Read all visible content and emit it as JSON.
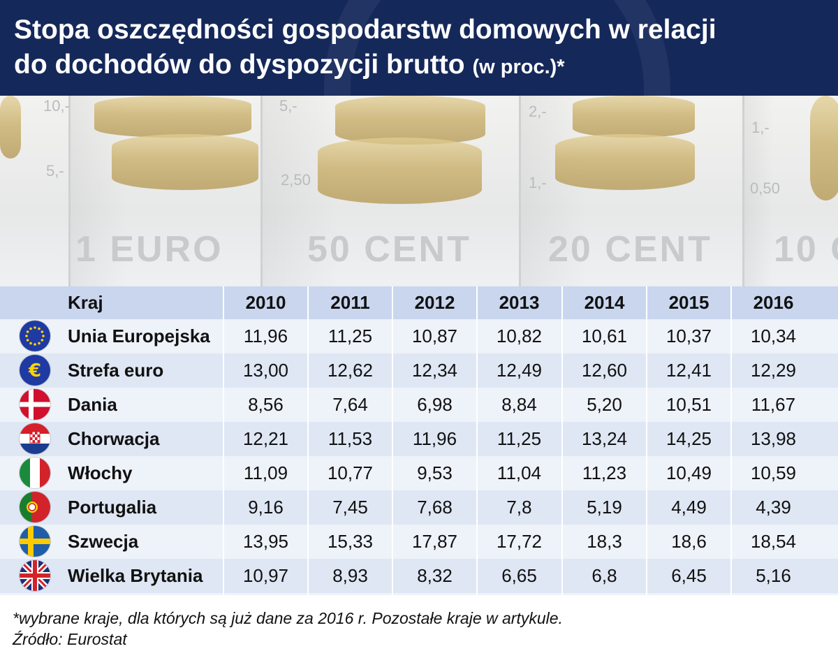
{
  "header": {
    "title_line1": "Stopa oszczędności gospodarstw domowych w relacji",
    "title_line2": "do dochodów do dyspozycji brutto",
    "title_suffix": "(w proc.)*"
  },
  "photo": {
    "denominations": [
      "1 EURO",
      "50 CENT",
      "20 CENT",
      "10 C"
    ],
    "scale_marks": [
      "10,-",
      "5,-",
      "5,-",
      "2,50",
      "2,-",
      "1,-",
      "1,-",
      "0,50"
    ]
  },
  "chart_data": {
    "type": "table",
    "title": "Stopa oszczędności gospodarstw domowych w relacji do dochodów do dyspozycji brutto (w proc.)*",
    "column_header": "Kraj",
    "columns": [
      "2010",
      "2011",
      "2012",
      "2013",
      "2014",
      "2015",
      "2016"
    ],
    "rows": [
      {
        "country": "Unia Europejska",
        "flag": "eu-flag-icon",
        "values": [
          "11,96",
          "11,25",
          "10,87",
          "10,82",
          "10,61",
          "10,37",
          "10,34"
        ]
      },
      {
        "country": "Strefa euro",
        "flag": "euro-sign-icon",
        "values": [
          "13,00",
          "12,62",
          "12,34",
          "12,49",
          "12,60",
          "12,41",
          "12,29"
        ]
      },
      {
        "country": "Dania",
        "flag": "denmark-flag-icon",
        "values": [
          "8,56",
          "7,64",
          "6,98",
          "8,84",
          "5,20",
          "10,51",
          "11,67"
        ]
      },
      {
        "country": "Chorwacja",
        "flag": "croatia-flag-icon",
        "values": [
          "12,21",
          "11,53",
          "11,96",
          "11,25",
          "13,24",
          "14,25",
          "13,98"
        ]
      },
      {
        "country": "Włochy",
        "flag": "italy-flag-icon",
        "values": [
          "11,09",
          "10,77",
          "9,53",
          "11,04",
          "11,23",
          "10,49",
          "10,59"
        ]
      },
      {
        "country": "Portugalia",
        "flag": "portugal-flag-icon",
        "values": [
          "9,16",
          "7,45",
          "7,68",
          "7,8",
          "5,19",
          "4,49",
          "4,39"
        ]
      },
      {
        "country": "Szwecja",
        "flag": "sweden-flag-icon",
        "values": [
          "13,95",
          "15,33",
          "17,87",
          "17,72",
          "18,3",
          "18,6",
          "18,54"
        ]
      },
      {
        "country": "Wielka Brytania",
        "flag": "uk-flag-icon",
        "values": [
          "10,97",
          "8,93",
          "8,32",
          "6,65",
          "6,8",
          "6,45",
          "5,16"
        ]
      }
    ]
  },
  "footer": {
    "note": "*wybrane kraje, dla których są już dane za 2016 r. Pozostałe kraje w artykule.",
    "source": "Źródło: Eurostat"
  },
  "colors": {
    "header_bg": "#15285a",
    "table_header_bg": "#c9d6ee",
    "row_alt_bg": "#dfe7f4",
    "row_bg": "#eef2f9"
  }
}
